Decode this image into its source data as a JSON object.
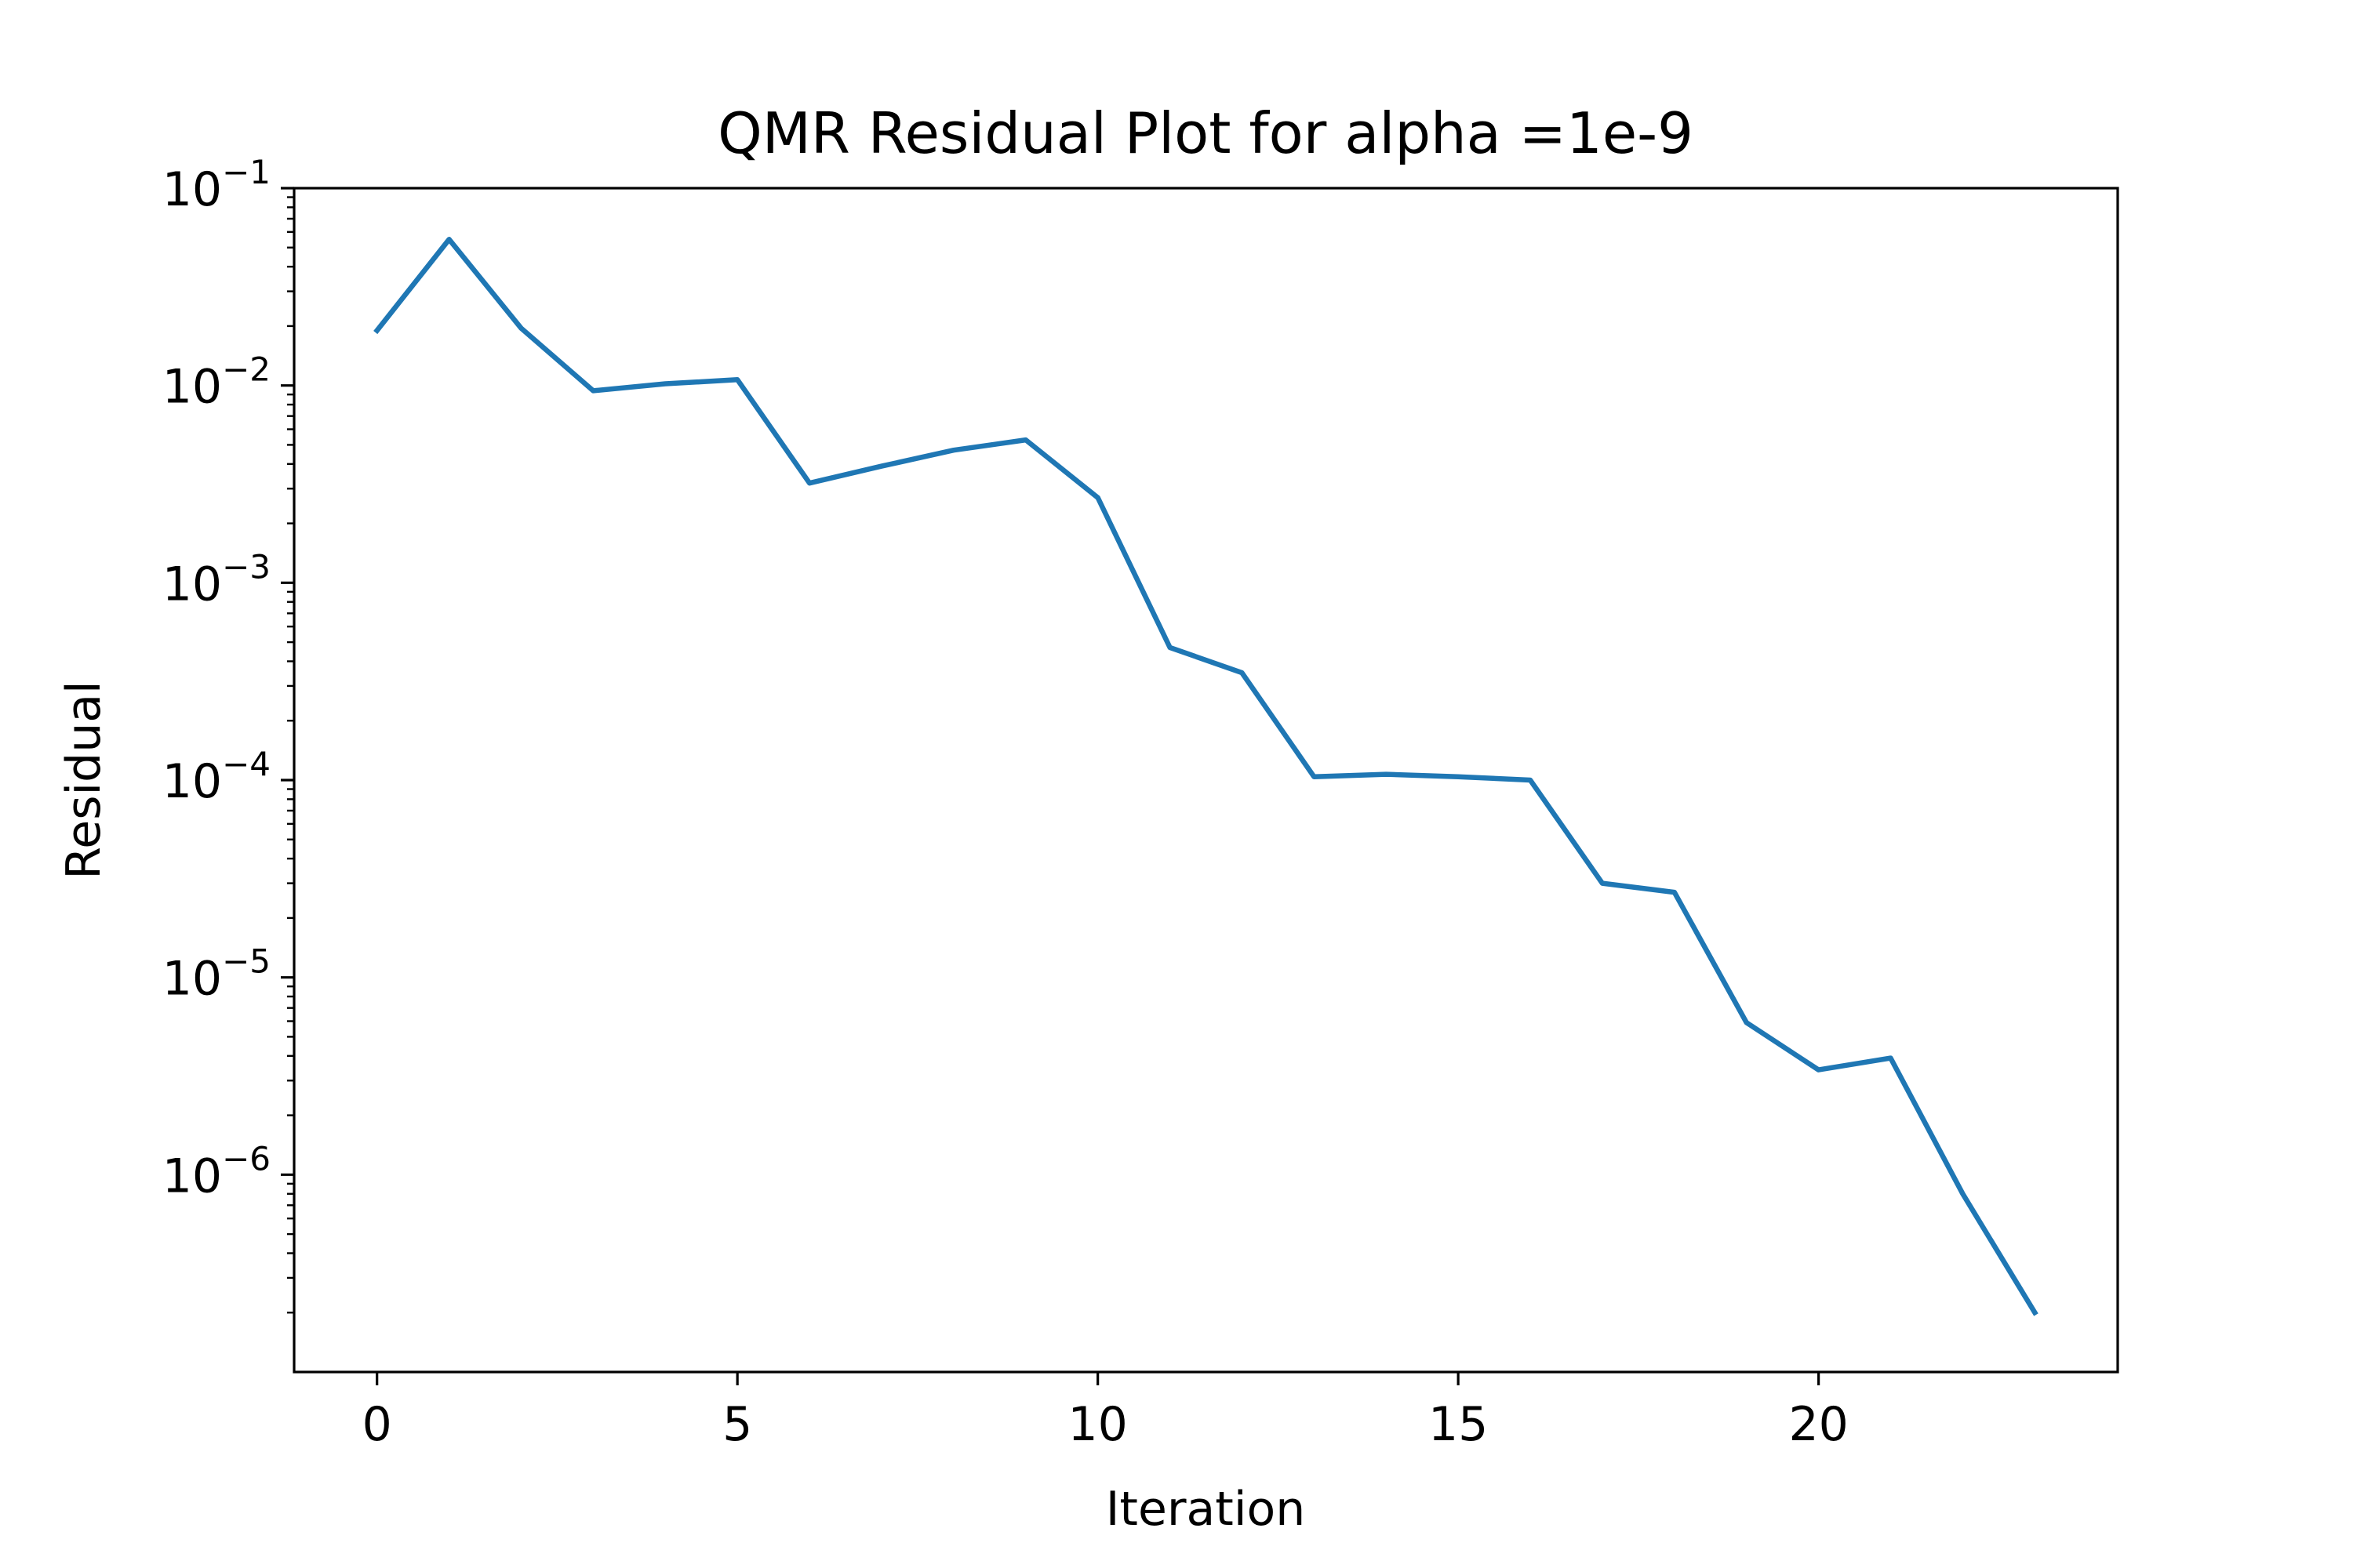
{
  "chart_data": {
    "type": "line",
    "title": "QMR Residual Plot for alpha =1e-9",
    "xlabel": "Iteration",
    "ylabel": "Residual",
    "xlim": [
      -1.15,
      24.15
    ],
    "ylim": [
      1e-07,
      0.1
    ],
    "yscale": "log",
    "xticks": [
      0,
      5,
      10,
      15,
      20
    ],
    "xtick_labels": [
      "0",
      "5",
      "10",
      "15",
      "20"
    ],
    "yticks": [
      0.1,
      0.01,
      0.001,
      0.0001,
      1e-05,
      1e-06
    ],
    "ytick_labels": [
      {
        "base": "10",
        "exp": "−1"
      },
      {
        "base": "10",
        "exp": "−2"
      },
      {
        "base": "10",
        "exp": "−3"
      },
      {
        "base": "10",
        "exp": "−4"
      },
      {
        "base": "10",
        "exp": "−5"
      },
      {
        "base": "10",
        "exp": "−6"
      }
    ],
    "grid": false,
    "series": [
      {
        "color": "#1f77b4",
        "x": [
          0,
          1,
          2,
          3,
          4,
          5,
          6,
          7,
          8,
          9,
          10,
          11,
          12,
          13,
          14,
          15,
          16,
          17,
          18,
          19,
          20,
          21,
          22,
          23
        ],
        "y": [
          0.019,
          0.055,
          0.0195,
          0.0094,
          0.0102,
          0.0107,
          0.0032,
          0.0039,
          0.0047,
          0.0053,
          0.0027,
          0.00047,
          0.00035,
          0.000104,
          0.000107,
          0.000104,
          0.0001,
          3e-05,
          2.7e-05,
          5.9e-06,
          3.4e-06,
          3.9e-06,
          8e-07,
          2e-07
        ]
      }
    ]
  }
}
